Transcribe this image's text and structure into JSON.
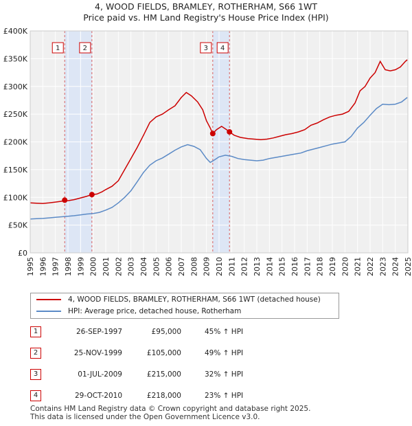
{
  "chart_data": {
    "type": "line",
    "title": "4, WOOD FIELDS, BRAMLEY, ROTHERHAM, S66 1WT",
    "subtitle": "Price paid vs. HM Land Registry's House Price Index (HPI)",
    "xlim": [
      1995,
      2025
    ],
    "ylim": [
      0,
      400000
    ],
    "y_ticks": [
      0,
      50000,
      100000,
      150000,
      200000,
      250000,
      300000,
      350000,
      400000
    ],
    "y_tick_labels": [
      "£0",
      "£50K",
      "£100K",
      "£150K",
      "£200K",
      "£250K",
      "£300K",
      "£350K",
      "£400K"
    ],
    "x_ticks": [
      "1995",
      "1996",
      "1997",
      "1998",
      "1999",
      "2000",
      "2001",
      "2002",
      "2003",
      "2004",
      "2005",
      "2006",
      "2007",
      "2008",
      "2009",
      "2010",
      "2011",
      "2012",
      "2013",
      "2014",
      "2015",
      "2016",
      "2017",
      "2018",
      "2019",
      "2020",
      "2021",
      "2022",
      "2023",
      "2024",
      "2025"
    ],
    "grid": true,
    "series": [
      {
        "name": "4, WOOD FIELDS, BRAMLEY, ROTHERHAM, S66 1WT (detached house)",
        "color": "#cc0000",
        "points": [
          [
            1995.0,
            90000
          ],
          [
            1995.5,
            89500
          ],
          [
            1996.0,
            89000
          ],
          [
            1996.5,
            90000
          ],
          [
            1997.0,
            91500
          ],
          [
            1997.5,
            93000
          ],
          [
            1997.74,
            95000
          ],
          [
            1998.0,
            94000
          ],
          [
            1998.5,
            96000
          ],
          [
            1999.0,
            99000
          ],
          [
            1999.5,
            102000
          ],
          [
            1999.9,
            105000
          ],
          [
            2000.3,
            106000
          ],
          [
            2000.7,
            110000
          ],
          [
            2001.0,
            114000
          ],
          [
            2001.5,
            120000
          ],
          [
            2002.0,
            130000
          ],
          [
            2002.5,
            150000
          ],
          [
            2003.0,
            170000
          ],
          [
            2003.5,
            190000
          ],
          [
            2004.0,
            212000
          ],
          [
            2004.5,
            235000
          ],
          [
            2005.0,
            245000
          ],
          [
            2005.5,
            250000
          ],
          [
            2006.0,
            258000
          ],
          [
            2006.5,
            265000
          ],
          [
            2007.0,
            280000
          ],
          [
            2007.4,
            289000
          ],
          [
            2007.8,
            283000
          ],
          [
            2008.3,
            272000
          ],
          [
            2008.7,
            258000
          ],
          [
            2009.0,
            238000
          ],
          [
            2009.3,
            225000
          ],
          [
            2009.5,
            215000
          ],
          [
            2009.8,
            222000
          ],
          [
            2010.2,
            228000
          ],
          [
            2010.6,
            222000
          ],
          [
            2010.83,
            218000
          ],
          [
            2011.2,
            212000
          ],
          [
            2011.7,
            208000
          ],
          [
            2012.3,
            206000
          ],
          [
            2012.8,
            205000
          ],
          [
            2013.3,
            204000
          ],
          [
            2013.8,
            205000
          ],
          [
            2014.3,
            207000
          ],
          [
            2014.8,
            210000
          ],
          [
            2015.3,
            213000
          ],
          [
            2015.8,
            215000
          ],
          [
            2016.3,
            218000
          ],
          [
            2016.8,
            222000
          ],
          [
            2017.3,
            230000
          ],
          [
            2017.8,
            234000
          ],
          [
            2018.3,
            240000
          ],
          [
            2018.8,
            245000
          ],
          [
            2019.3,
            248000
          ],
          [
            2019.8,
            250000
          ],
          [
            2020.3,
            255000
          ],
          [
            2020.8,
            270000
          ],
          [
            2021.2,
            292000
          ],
          [
            2021.6,
            300000
          ],
          [
            2022.0,
            315000
          ],
          [
            2022.4,
            325000
          ],
          [
            2022.8,
            345000
          ],
          [
            2023.2,
            330000
          ],
          [
            2023.6,
            328000
          ],
          [
            2024.0,
            330000
          ],
          [
            2024.4,
            335000
          ],
          [
            2024.8,
            345000
          ],
          [
            2024.95,
            348000
          ]
        ]
      },
      {
        "name": "HPI: Average price, detached house, Rotherham",
        "color": "#5b8ac6",
        "points": [
          [
            1995.0,
            61000
          ],
          [
            1995.5,
            61500
          ],
          [
            1996.0,
            62000
          ],
          [
            1996.5,
            63000
          ],
          [
            1997.0,
            64000
          ],
          [
            1997.5,
            65000
          ],
          [
            1998.0,
            66000
          ],
          [
            1998.5,
            67000
          ],
          [
            1999.0,
            68500
          ],
          [
            1999.5,
            70000
          ],
          [
            2000.0,
            71000
          ],
          [
            2000.5,
            73000
          ],
          [
            2001.0,
            77000
          ],
          [
            2001.5,
            82000
          ],
          [
            2002.0,
            90000
          ],
          [
            2002.5,
            100000
          ],
          [
            2003.0,
            112000
          ],
          [
            2003.5,
            128000
          ],
          [
            2004.0,
            145000
          ],
          [
            2004.5,
            158000
          ],
          [
            2005.0,
            166000
          ],
          [
            2005.5,
            171000
          ],
          [
            2006.0,
            178000
          ],
          [
            2006.5,
            185000
          ],
          [
            2007.0,
            191000
          ],
          [
            2007.5,
            195000
          ],
          [
            2008.0,
            192000
          ],
          [
            2008.5,
            186000
          ],
          [
            2009.0,
            170000
          ],
          [
            2009.3,
            163000
          ],
          [
            2009.6,
            167000
          ],
          [
            2010.0,
            173000
          ],
          [
            2010.5,
            176000
          ],
          [
            2011.0,
            174000
          ],
          [
            2011.5,
            170000
          ],
          [
            2012.0,
            168000
          ],
          [
            2012.5,
            167000
          ],
          [
            2013.0,
            166000
          ],
          [
            2013.5,
            167000
          ],
          [
            2014.0,
            170000
          ],
          [
            2014.5,
            172000
          ],
          [
            2015.0,
            174000
          ],
          [
            2015.5,
            176000
          ],
          [
            2016.0,
            178000
          ],
          [
            2016.5,
            180000
          ],
          [
            2017.0,
            184000
          ],
          [
            2017.5,
            187000
          ],
          [
            2018.0,
            190000
          ],
          [
            2018.5,
            193000
          ],
          [
            2019.0,
            196000
          ],
          [
            2019.5,
            198000
          ],
          [
            2020.0,
            200000
          ],
          [
            2020.5,
            210000
          ],
          [
            2021.0,
            225000
          ],
          [
            2021.5,
            235000
          ],
          [
            2022.0,
            248000
          ],
          [
            2022.5,
            260000
          ],
          [
            2023.0,
            268000
          ],
          [
            2023.5,
            267000
          ],
          [
            2024.0,
            268000
          ],
          [
            2024.5,
            272000
          ],
          [
            2024.95,
            280000
          ]
        ]
      }
    ],
    "sales": [
      {
        "num": "1",
        "x": 1997.74,
        "y": 95000
      },
      {
        "num": "2",
        "x": 1999.9,
        "y": 105000
      },
      {
        "num": "3",
        "x": 2009.5,
        "y": 215000
      },
      {
        "num": "4",
        "x": 2010.83,
        "y": 218000
      }
    ],
    "shaded_ranges": [
      [
        1997.74,
        1999.9
      ],
      [
        2009.5,
        2010.83
      ]
    ]
  },
  "legend": {
    "property": "4, WOOD FIELDS, BRAMLEY, ROTHERHAM, S66 1WT (detached house)",
    "hpi": "HPI: Average price, detached house, Rotherham"
  },
  "sales_table": [
    {
      "num": "1",
      "date": "26-SEP-1997",
      "price": "£95,000",
      "hpi": "45% ↑ HPI"
    },
    {
      "num": "2",
      "date": "25-NOV-1999",
      "price": "£105,000",
      "hpi": "49% ↑ HPI"
    },
    {
      "num": "3",
      "date": "01-JUL-2009",
      "price": "£215,000",
      "hpi": "32% ↑ HPI"
    },
    {
      "num": "4",
      "date": "29-OCT-2010",
      "price": "£218,000",
      "hpi": "23% ↑ HPI"
    }
  ],
  "footer": {
    "line1": "Contains HM Land Registry data © Crown copyright and database right 2025.",
    "line2": "This data is licensed under the Open Government Licence v3.0."
  },
  "colors": {
    "property": "#cc0000",
    "hpi": "#5b8ac6",
    "shade": "#dde6f5",
    "grid": "#dddddd",
    "plot_bg": "#f0f0f0"
  }
}
